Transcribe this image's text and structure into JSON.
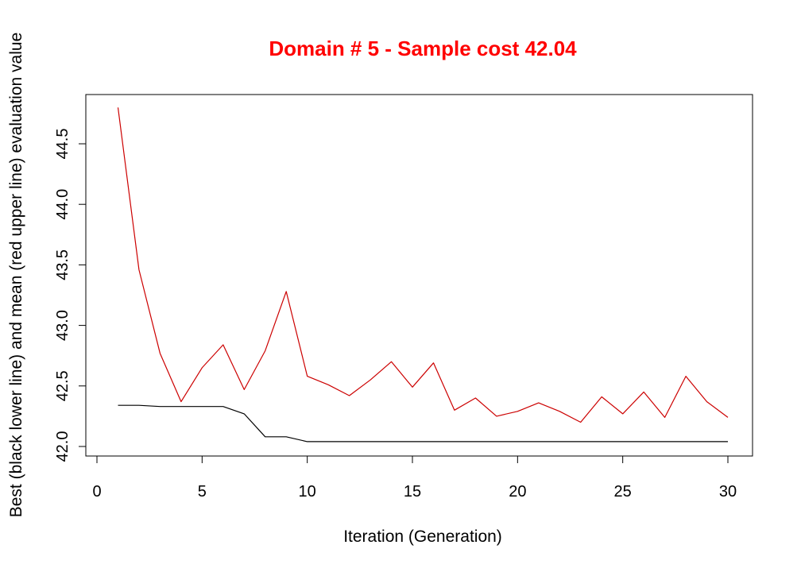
{
  "chart_data": {
    "type": "line",
    "title": "Domain # 5  - Sample cost 42.04",
    "xlabel": "Iteration (Generation)",
    "ylabel": "Best (black lower line) and mean (red upper line) evaluation value",
    "xlim": [
      0,
      30
    ],
    "ylim": [
      42.0,
      44.8
    ],
    "x_ticks": [
      0,
      5,
      10,
      15,
      20,
      25,
      30
    ],
    "y_ticks": [
      42.0,
      42.5,
      43.0,
      43.5,
      44.0,
      44.5
    ],
    "x_tick_labels": [
      "0",
      "5",
      "10",
      "15",
      "20",
      "25",
      "30"
    ],
    "y_tick_labels": [
      "42.0",
      "42.5",
      "43.0",
      "43.5",
      "44.0",
      "44.5"
    ],
    "grid": false,
    "legend": "none",
    "x": [
      1,
      2,
      3,
      4,
      5,
      6,
      7,
      8,
      9,
      10,
      11,
      12,
      13,
      14,
      15,
      16,
      17,
      18,
      19,
      20,
      21,
      22,
      23,
      24,
      25,
      26,
      27,
      28,
      29,
      30
    ],
    "series": [
      {
        "color": "#cc0000",
        "values": [
          44.8,
          43.46,
          42.77,
          42.37,
          42.65,
          42.84,
          42.47,
          42.79,
          43.28,
          42.58,
          42.51,
          42.42,
          42.55,
          42.7,
          42.49,
          42.69,
          42.3,
          42.4,
          42.25,
          42.29,
          42.36,
          42.29,
          42.2,
          42.41,
          42.27,
          42.45,
          42.24,
          42.58,
          42.37,
          42.24
        ]
      },
      {
        "color": "#000000",
        "values": [
          42.34,
          42.34,
          42.33,
          42.33,
          42.33,
          42.33,
          42.27,
          42.08,
          42.08,
          42.04,
          42.04,
          42.04,
          42.04,
          42.04,
          42.04,
          42.04,
          42.04,
          42.04,
          42.04,
          42.04,
          42.04,
          42.04,
          42.04,
          42.04,
          42.04,
          42.04,
          42.04,
          42.04,
          42.04,
          42.04
        ]
      }
    ]
  },
  "colors": {
    "title": "#ff0000"
  }
}
